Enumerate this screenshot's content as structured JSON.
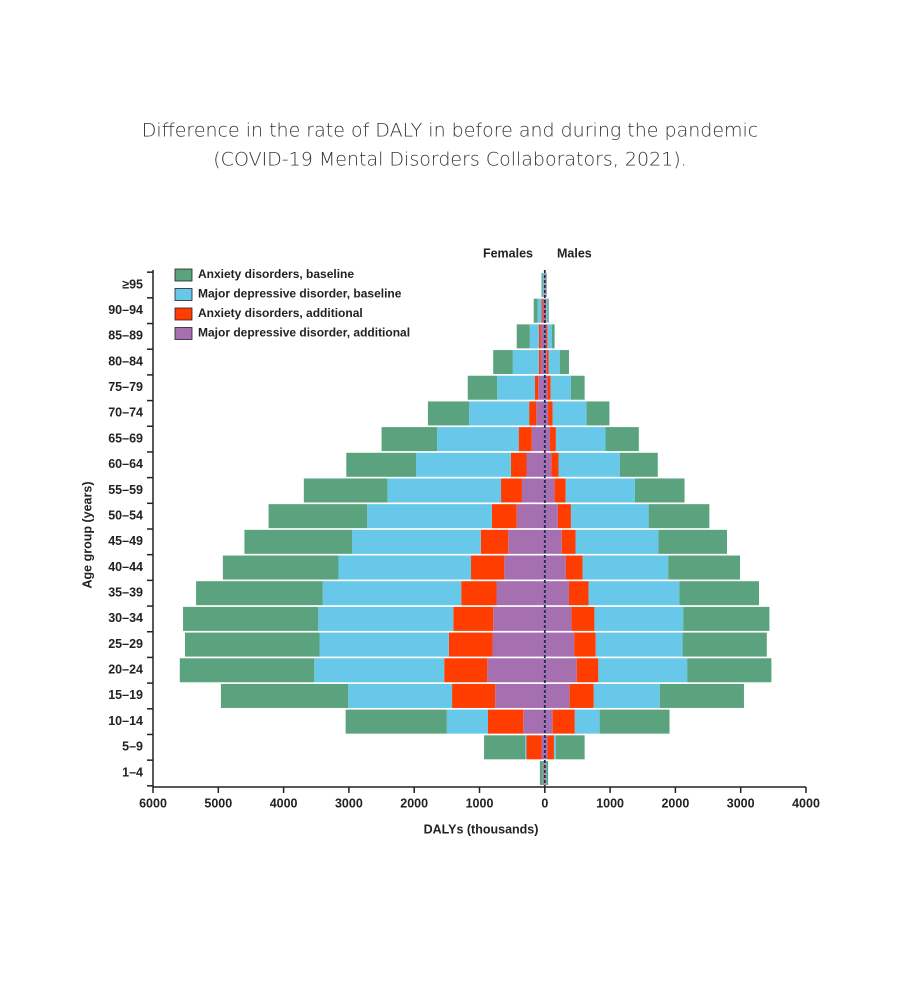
{
  "chart_data": {
    "type": "pyramid",
    "title": "Difference in the rate of DALY in before and during the pandemic",
    "subtitle": "(COVID-19 Mental Disorders Collaborators, 2021).",
    "x_label": "DALYs (thousands)",
    "y_label": "Age group (years)",
    "sides": [
      "Females",
      "Males"
    ],
    "categories": [
      "≥95",
      "90–94",
      "85–89",
      "80–84",
      "75–79",
      "70–74",
      "65–69",
      "60–64",
      "55–59",
      "50–54",
      "45–49",
      "40–44",
      "35–39",
      "30–34",
      "25–29",
      "20–24",
      "15–19",
      "10–14",
      "5–9",
      "1–4"
    ],
    "series": [
      {
        "name": "Anxiety disorders, baseline",
        "color": "#5aa37e",
        "values": [
          [
            20,
            60,
            200,
            300,
            450,
            630,
            850,
            1070,
            1280,
            1510,
            1650,
            1770,
            1940,
            2070,
            2060,
            2060,
            1950,
            1550,
            630,
            40
          ],
          [
            10,
            20,
            40,
            140,
            210,
            350,
            510,
            580,
            760,
            930,
            1050,
            1100,
            1220,
            1320,
            1290,
            1290,
            1290,
            1070,
            440,
            25
          ]
        ]
      },
      {
        "name": "Major depressive disorder, baseline",
        "color": "#67c8ea",
        "values": [
          [
            15,
            60,
            140,
            400,
            580,
            920,
            1250,
            1450,
            1740,
            1910,
            1970,
            2030,
            2120,
            2070,
            1980,
            1990,
            1590,
            630,
            20,
            15
          ],
          [
            10,
            20,
            70,
            170,
            310,
            520,
            760,
            940,
            1060,
            1190,
            1270,
            1310,
            1390,
            1360,
            1330,
            1360,
            1010,
            380,
            30,
            10
          ]
        ]
      },
      {
        "name": "Anxiety disorders, additional",
        "color": "#ff3d00",
        "values": [
          [
            5,
            20,
            30,
            30,
            50,
            110,
            200,
            240,
            320,
            380,
            420,
            510,
            540,
            610,
            670,
            660,
            660,
            540,
            230,
            10
          ],
          [
            5,
            10,
            20,
            30,
            50,
            70,
            90,
            110,
            170,
            200,
            210,
            260,
            300,
            350,
            330,
            330,
            370,
            340,
            100,
            10
          ]
        ]
      },
      {
        "name": "Major depressive disorder, additional",
        "color": "#a66fb0",
        "values": [
          [
            10,
            30,
            60,
            60,
            100,
            130,
            200,
            280,
            350,
            430,
            560,
            620,
            740,
            790,
            800,
            880,
            760,
            330,
            50,
            10
          ],
          [
            5,
            10,
            20,
            30,
            40,
            50,
            80,
            100,
            150,
            200,
            260,
            320,
            370,
            410,
            450,
            490,
            380,
            120,
            40,
            5
          ]
        ]
      }
    ],
    "xlim": [
      -6000,
      4000
    ],
    "xticks": [
      {
        "value": -6000,
        "label": "6000"
      },
      {
        "value": -5000,
        "label": "5000"
      },
      {
        "value": -4000,
        "label": "4000"
      },
      {
        "value": -3000,
        "label": "3000"
      },
      {
        "value": -2000,
        "label": "2000"
      },
      {
        "value": -1000,
        "label": "1000"
      },
      0,
      1000,
      2000,
      3000,
      4000
    ]
  }
}
